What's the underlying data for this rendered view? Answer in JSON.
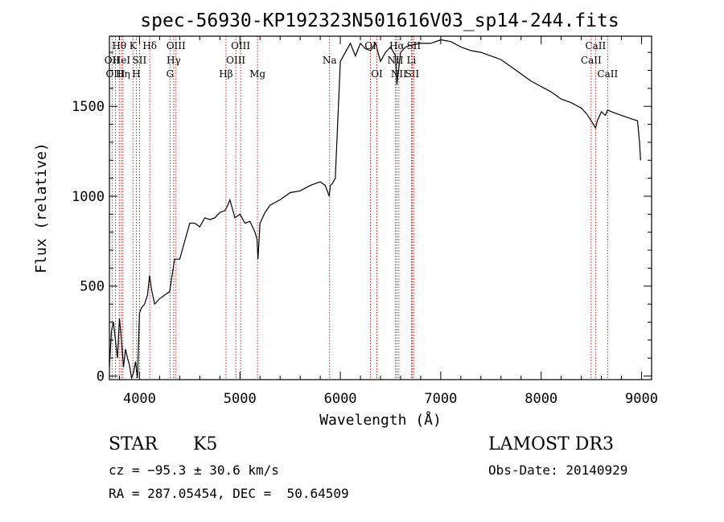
{
  "chart_data": {
    "type": "line",
    "title": "spec-56930-KP192323N501616V03_sp14-244.fits",
    "xlabel": "Wavelength (Å)",
    "ylabel": "Flux (relative)",
    "xlim": [
      3700,
      9100
    ],
    "ylim": [
      -20,
      1890
    ],
    "x_ticks": [
      4000,
      5000,
      6000,
      7000,
      8000,
      9000
    ],
    "y_ticks": [
      0,
      500,
      1000,
      1500
    ],
    "grid": false,
    "series": [
      {
        "x": [
          3700,
          3720,
          3740,
          3760,
          3780,
          3800,
          3820,
          3840,
          3860,
          3880,
          3900,
          3920,
          3940,
          3960,
          3980,
          4000,
          4020,
          4050,
          4080,
          4100,
          4120,
          4150,
          4200,
          4250,
          4300,
          4330,
          4350,
          4400,
          4450,
          4500,
          4550,
          4600,
          4650,
          4700,
          4750,
          4800,
          4850,
          4880,
          4900,
          4950,
          5000,
          5050,
          5100,
          5150,
          5170,
          5180,
          5200,
          5250,
          5300,
          5400,
          5500,
          5600,
          5700,
          5800,
          5850,
          5890,
          5900,
          5920,
          5950,
          6000,
          6050,
          6100,
          6150,
          6200,
          6250,
          6300,
          6350,
          6400,
          6450,
          6500,
          6550,
          6563,
          6600,
          6650,
          6700,
          6800,
          6900,
          7000,
          7100,
          7200,
          7300,
          7400,
          7500,
          7600,
          7700,
          7800,
          7900,
          8000,
          8100,
          8200,
          8300,
          8400,
          8450,
          8498,
          8520,
          8542,
          8560,
          8600,
          8640,
          8662,
          8700,
          8800,
          8900,
          8960,
          8980,
          8990
        ],
        "y": [
          50,
          250,
          300,
          200,
          100,
          320,
          200,
          50,
          150,
          100,
          60,
          -10,
          20,
          80,
          -10,
          350,
          380,
          400,
          450,
          560,
          480,
          400,
          430,
          450,
          470,
          580,
          650,
          650,
          750,
          850,
          850,
          830,
          880,
          870,
          880,
          910,
          920,
          950,
          980,
          880,
          900,
          850,
          860,
          800,
          760,
          650,
          850,
          910,
          950,
          980,
          1020,
          1030,
          1060,
          1080,
          1060,
          1000,
          1060,
          1070,
          1100,
          1750,
          1800,
          1850,
          1780,
          1850,
          1820,
          1810,
          1850,
          1750,
          1800,
          1830,
          1780,
          1620,
          1800,
          1830,
          1840,
          1850,
          1850,
          1870,
          1860,
          1830,
          1810,
          1800,
          1780,
          1760,
          1720,
          1680,
          1640,
          1610,
          1580,
          1540,
          1520,
          1490,
          1460,
          1420,
          1400,
          1380,
          1420,
          1470,
          1450,
          1480,
          1470,
          1450,
          1430,
          1420,
          1300,
          1200
        ]
      }
    ],
    "spectral_lines": [
      {
        "name": "Hθ",
        "x": 3798,
        "row": 1
      },
      {
        "name": "OII",
        "x": 3727,
        "row": 2
      },
      {
        "name": "OIII",
        "x": 3760,
        "row": 3
      },
      {
        "name": "HeI",
        "x": 3820,
        "row": 2
      },
      {
        "name": "Hη",
        "x": 3835,
        "row": 3
      },
      {
        "name": "K",
        "x": 3934,
        "row": 1
      },
      {
        "name": "SII",
        "x": 4000,
        "row": 2
      },
      {
        "name": "H",
        "x": 3968,
        "row": 3
      },
      {
        "name": "Hδ",
        "x": 4102,
        "row": 1
      },
      {
        "name": "OIII",
        "x": 4363,
        "row": 1
      },
      {
        "name": "Hγ",
        "x": 4340,
        "row": 2
      },
      {
        "name": "G",
        "x": 4304,
        "row": 3
      },
      {
        "name": "OIII",
        "x": 5007,
        "row": 1
      },
      {
        "name": "OIII",
        "x": 4959,
        "row": 2
      },
      {
        "name": "Hβ",
        "x": 4861,
        "row": 3
      },
      {
        "name": "Mg",
        "x": 5175,
        "row": 3
      },
      {
        "name": "Na",
        "x": 5893,
        "row": 2
      },
      {
        "name": "OI",
        "x": 6300,
        "row": 1
      },
      {
        "name": "OI",
        "x": 6364,
        "row": 3
      },
      {
        "name": "NII",
        "x": 6548,
        "row": 2
      },
      {
        "name": "Hα",
        "x": 6563,
        "row": 1
      },
      {
        "name": "NII",
        "x": 6583,
        "row": 3
      },
      {
        "name": "SII",
        "x": 6716,
        "row": 3
      },
      {
        "name": "SII",
        "x": 6731,
        "row": 1
      },
      {
        "name": "Li",
        "x": 6708,
        "row": 2
      },
      {
        "name": "CaII",
        "x": 8542,
        "row": 1
      },
      {
        "name": "CaII",
        "x": 8498,
        "row": 2
      },
      {
        "name": "CaII",
        "x": 8662,
        "row": 3
      }
    ]
  },
  "info": {
    "object_class": "STAR",
    "subclass": "K5",
    "cz": "cz = −95.3 ± 30.6 km/s",
    "coords": "RA = 287.05454, DEC =  50.64509",
    "survey": "LAMOST DR3",
    "obs_date": "Obs-Date: 20140929"
  }
}
